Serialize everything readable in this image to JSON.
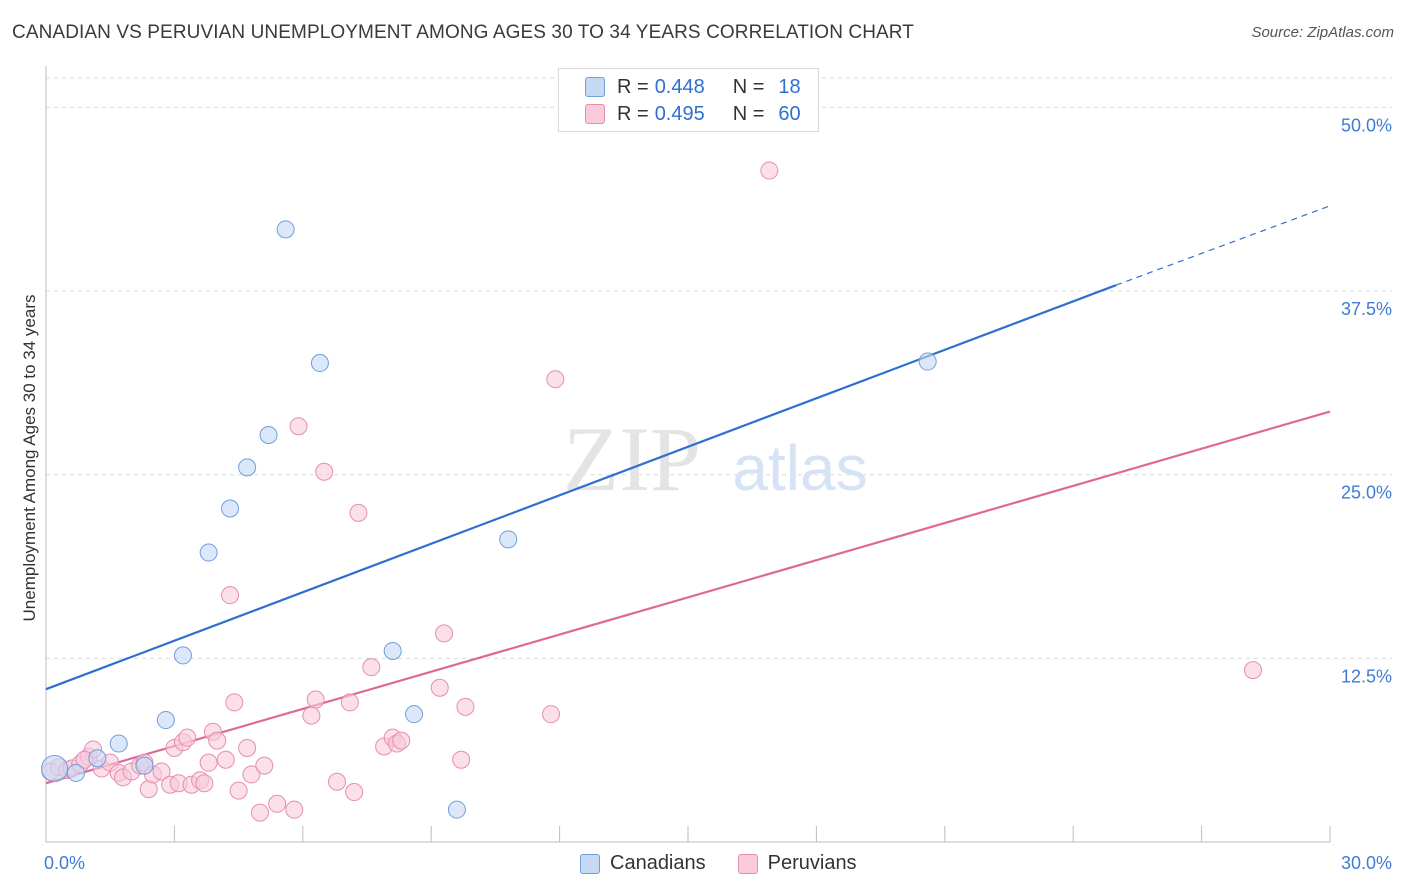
{
  "header": {
    "title": "CANADIAN VS PERUVIAN UNEMPLOYMENT AMONG AGES 30 TO 34 YEARS CORRELATION CHART",
    "source": "Source: ZipAtlas.com"
  },
  "legend": {
    "r_label": "R =",
    "n_label": "N =",
    "rows": [
      {
        "r": "0.448",
        "n": "18"
      },
      {
        "r": "0.495",
        "n": "60"
      }
    ]
  },
  "bottom_legend": {
    "canadians": "Canadians",
    "peruvians": "Peruvians"
  },
  "watermark": {
    "zip": "ZIP",
    "atlas": "atlas"
  },
  "colors": {
    "blue": "#2e6fcf",
    "blue_fill": "#c5d9f5",
    "blue_stroke": "#6f9fdc",
    "pink": "#e0679a",
    "pink_fill": "#f9cadb",
    "pink_stroke": "#e58fb0",
    "tick_label": "#3f7bd6",
    "grid": "#dcdcdc"
  },
  "chart_data": {
    "type": "scatter",
    "title": "CANADIAN VS PERUVIAN UNEMPLOYMENT AMONG AGES 30 TO 34 YEARS CORRELATION CHART",
    "xlabel": "",
    "ylabel": "Unemployment Among Ages 30 to 34 years",
    "xlim": [
      0,
      30
    ],
    "ylim": [
      0,
      52
    ],
    "x_tick_labels": [
      "0.0%",
      "30.0%"
    ],
    "y_ticks": [
      12.5,
      25.0,
      37.5,
      50.0
    ],
    "y_tick_labels": [
      "12.5%",
      "25.0%",
      "37.5%",
      "50.0%"
    ],
    "series": [
      {
        "name": "Canadians",
        "R": 0.448,
        "N": 18,
        "points": [
          [
            0.2,
            5.0
          ],
          [
            0.7,
            4.7
          ],
          [
            1.2,
            5.7
          ],
          [
            1.7,
            6.7
          ],
          [
            2.3,
            5.2
          ],
          [
            2.8,
            8.3
          ],
          [
            3.2,
            12.7
          ],
          [
            3.8,
            19.7
          ],
          [
            4.3,
            22.7
          ],
          [
            4.7,
            25.5
          ],
          [
            5.2,
            27.7
          ],
          [
            5.6,
            41.7
          ],
          [
            6.4,
            32.6
          ],
          [
            8.1,
            13.0
          ],
          [
            8.6,
            8.7
          ],
          [
            9.6,
            2.2
          ],
          [
            10.8,
            20.6
          ],
          [
            20.6,
            32.7
          ]
        ],
        "trend": {
          "x0": 0,
          "y0": 10.4,
          "x1": 25.0,
          "y1": 37.9,
          "dashed_to_x": 30,
          "dashed_to_y": 43.3
        }
      },
      {
        "name": "Peruvians",
        "R": 0.495,
        "N": 60,
        "points": [
          [
            0.1,
            4.8
          ],
          [
            0.3,
            5.1
          ],
          [
            0.5,
            4.9
          ],
          [
            0.6,
            5.0
          ],
          [
            0.8,
            5.3
          ],
          [
            1.0,
            5.8
          ],
          [
            1.1,
            6.3
          ],
          [
            1.3,
            5.0
          ],
          [
            1.5,
            5.4
          ],
          [
            1.7,
            4.7
          ],
          [
            1.8,
            4.4
          ],
          [
            2.0,
            4.8
          ],
          [
            2.2,
            5.2
          ],
          [
            2.3,
            5.4
          ],
          [
            2.4,
            3.6
          ],
          [
            2.5,
            4.6
          ],
          [
            2.7,
            4.8
          ],
          [
            2.9,
            3.9
          ],
          [
            3.0,
            6.4
          ],
          [
            3.1,
            4.0
          ],
          [
            3.2,
            6.8
          ],
          [
            3.3,
            7.1
          ],
          [
            3.4,
            3.9
          ],
          [
            3.6,
            4.2
          ],
          [
            3.7,
            4.0
          ],
          [
            3.8,
            5.4
          ],
          [
            3.9,
            7.5
          ],
          [
            4.0,
            6.9
          ],
          [
            4.2,
            5.6
          ],
          [
            4.3,
            16.8
          ],
          [
            4.4,
            9.5
          ],
          [
            4.5,
            3.5
          ],
          [
            4.7,
            6.4
          ],
          [
            4.8,
            4.6
          ],
          [
            5.0,
            2.0
          ],
          [
            5.1,
            5.2
          ],
          [
            5.4,
            2.6
          ],
          [
            5.8,
            2.2
          ],
          [
            5.9,
            28.3
          ],
          [
            6.2,
            8.6
          ],
          [
            6.3,
            9.7
          ],
          [
            6.5,
            25.2
          ],
          [
            6.8,
            4.1
          ],
          [
            7.1,
            9.5
          ],
          [
            7.2,
            3.4
          ],
          [
            7.3,
            22.4
          ],
          [
            7.6,
            11.9
          ],
          [
            7.9,
            6.5
          ],
          [
            8.1,
            7.1
          ],
          [
            8.2,
            6.7
          ],
          [
            8.3,
            6.9
          ],
          [
            9.2,
            10.5
          ],
          [
            9.3,
            14.2
          ],
          [
            9.7,
            5.6
          ],
          [
            9.8,
            9.2
          ],
          [
            11.8,
            8.7
          ],
          [
            11.9,
            31.5
          ],
          [
            16.9,
            45.7
          ],
          [
            28.2,
            11.7
          ],
          [
            0.9,
            5.6
          ]
        ],
        "trend": {
          "x0": 0,
          "y0": 4.0,
          "x1": 30,
          "y1": 29.3
        }
      }
    ]
  }
}
